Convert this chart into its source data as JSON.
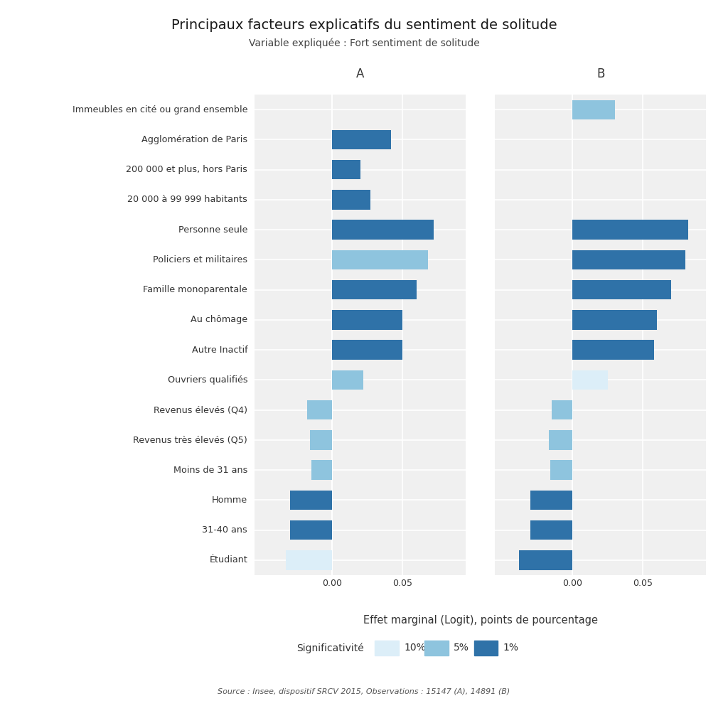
{
  "title": "Principaux facteurs explicatifs du sentiment de solitude",
  "subtitle": "Variable expliquée : Fort sentiment de solitude",
  "xlabel": "Effet marginal (Logit), points de pourcentage",
  "source": "Source : Insee, dispositif SRCV 2015, Observations : 15147 (A), 14891 (B)",
  "col_A_label": "A",
  "col_B_label": "B",
  "categories": [
    "Immeubles en cité ou grand ensemble",
    "Agglomération de Paris",
    "200 000 et plus, hors Paris",
    "20 000 à 99 999 habitants",
    "Personne seule",
    "Policiers et militaires",
    "Famille monoparentale",
    "Au chômage",
    "Autre Inactif",
    "Ouvriers qualifiés",
    "Revenus élevés (Q4)",
    "Revenus très élevés (Q5)",
    "Moins de 31 ans",
    "Homme",
    "31-40 ans",
    "Étudiant"
  ],
  "values_A": [
    0.0,
    0.042,
    0.02,
    0.027,
    0.072,
    0.068,
    0.06,
    0.05,
    0.05,
    0.022,
    -0.018,
    -0.016,
    -0.015,
    -0.03,
    -0.03,
    -0.033
  ],
  "values_B": [
    0.03,
    0.0,
    0.0,
    0.0,
    0.082,
    0.08,
    0.07,
    0.06,
    0.058,
    0.025,
    -0.015,
    -0.017,
    -0.016,
    -0.03,
    -0.03,
    -0.038
  ],
  "sig_A": [
    "none",
    "1%",
    "1%",
    "1%",
    "1%",
    "5%",
    "1%",
    "1%",
    "1%",
    "5%",
    "5%",
    "5%",
    "5%",
    "1%",
    "1%",
    "10%"
  ],
  "sig_B": [
    "5%",
    "none",
    "none",
    "none",
    "1%",
    "1%",
    "1%",
    "1%",
    "1%",
    "10%",
    "5%",
    "5%",
    "5%",
    "1%",
    "1%",
    "1%"
  ],
  "color_10pct": "#dceef8",
  "color_5pct": "#8ec4de",
  "color_1pct": "#2f72a8",
  "background_color": "#f0f0f0",
  "grid_color": "#ffffff",
  "text_color": "#333333"
}
